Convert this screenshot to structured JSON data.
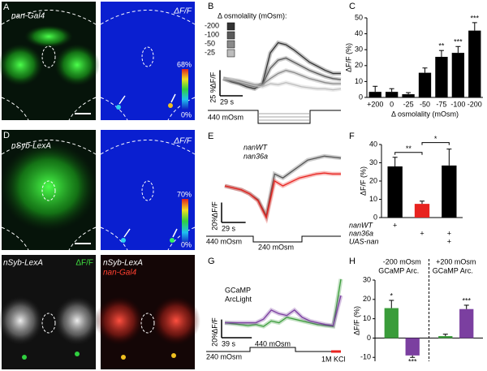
{
  "panel_a": {
    "letter": "A",
    "left_label": "nan-Gal4",
    "right_label": "ΔF/F",
    "colorbar_max": "68%",
    "colorbar_min": "0%"
  },
  "panel_d": {
    "letter": "D",
    "left_label": "nSyb-LexA",
    "right_label": "ΔF/F",
    "colorbar_max": "70%",
    "colorbar_min": "0%"
  },
  "panel_bottom": {
    "left_labels": [
      "nSyb-LexA",
      "ΔF/F"
    ],
    "right_labels": [
      "nSyb-LexA",
      "nan-Gal4"
    ]
  },
  "chart_data": [
    {
      "type": "line",
      "panel": "B",
      "legend_title": "Δ osmolality (mOsm):",
      "x": [
        0,
        10,
        20,
        30,
        40,
        50,
        60,
        70,
        80,
        90,
        100,
        110,
        120,
        130,
        140,
        150
      ],
      "xlim": [
        0,
        150
      ],
      "ylim": [
        -20,
        45
      ],
      "series": [
        {
          "name": "-200",
          "color": "#333333",
          "values": [
            0,
            -3,
            -5,
            -8,
            -10,
            -5,
            25,
            35,
            33,
            28,
            22,
            16,
            12,
            8,
            5,
            5
          ]
        },
        {
          "name": "-100",
          "color": "#5a5a5a",
          "values": [
            0,
            -2,
            -4,
            -6,
            -8,
            -6,
            10,
            18,
            20,
            16,
            12,
            8,
            5,
            2,
            0,
            -1
          ]
        },
        {
          "name": "-50",
          "color": "#8a8a8a",
          "values": [
            0,
            -1,
            -2,
            -4,
            -6,
            -6,
            0,
            5,
            8,
            6,
            3,
            0,
            -2,
            -4,
            -5,
            -5
          ]
        },
        {
          "name": "-25",
          "color": "#bdbdbd",
          "values": [
            0,
            -1,
            -3,
            -5,
            -7,
            -8,
            -5,
            -6,
            -4,
            -6,
            -8,
            -9,
            -10,
            -10,
            -11,
            -10
          ]
        }
      ],
      "y_scale_bar": {
        "value": 25,
        "label": "25 %"
      },
      "y_label": "ΔF/F",
      "x_scale_bar": {
        "value": 29,
        "label": "29 s"
      },
      "stimulus_labels": [
        "440 mOsm"
      ]
    },
    {
      "type": "bar",
      "panel": "C",
      "categories": [
        "+200",
        "0",
        "-25",
        "-50",
        "-75",
        "-100",
        "-200"
      ],
      "values": [
        3.5,
        3.5,
        2,
        15.5,
        25.5,
        28,
        42
      ],
      "errors": [
        3.5,
        2,
        1,
        3,
        4,
        4,
        5
      ],
      "annotations": [
        null,
        null,
        null,
        null,
        "**",
        "***",
        "***"
      ],
      "color": "#000000",
      "ylim": [
        0,
        50
      ],
      "yticks": [
        0,
        10,
        20,
        30,
        40,
        50
      ],
      "y_label": "ΔF/F (%)",
      "x_label": "Δ osmolality (mOsm)"
    },
    {
      "type": "line",
      "panel": "E",
      "x": [
        0,
        10,
        20,
        30,
        40,
        50,
        60,
        70,
        80,
        90,
        100,
        110,
        120,
        130,
        140
      ],
      "xlim": [
        0,
        140
      ],
      "ylim": [
        -40,
        40
      ],
      "series": [
        {
          "name": "nanWT",
          "color": "#555555",
          "values": [
            0,
            -2,
            -4,
            -8,
            -14,
            -30,
            12,
            8,
            14,
            20,
            26,
            28,
            30,
            29,
            28
          ]
        },
        {
          "name": "nan36a",
          "color": "#e8231f",
          "values": [
            0,
            -2,
            -4,
            -8,
            -15,
            -32,
            5,
            0,
            4,
            8,
            10,
            12,
            13,
            12,
            12
          ]
        }
      ],
      "y_scale_bar": {
        "value": 20,
        "label": "20%"
      },
      "y_label": "ΔF/F",
      "x_scale_bar": {
        "value": 29,
        "label": "29 s"
      },
      "stimulus_labels": [
        "440 mOsm",
        "240 mOsm"
      ]
    },
    {
      "type": "bar",
      "panel": "F",
      "values": [
        28,
        7.5,
        28.5
      ],
      "errors": [
        5,
        1.5,
        9
      ],
      "colors": [
        "#000000",
        "#e8231f",
        "#000000"
      ],
      "ylim": [
        0,
        40
      ],
      "yticks": [
        0,
        10,
        20,
        30,
        40
      ],
      "y_label": "ΔF/F (%)",
      "genotypes": [
        "nanWT",
        "nan36a",
        "UAS-nan"
      ],
      "genotype_table": [
        [
          "+",
          null,
          null
        ],
        [
          null,
          "+",
          "+"
        ],
        [
          null,
          null,
          "+"
        ]
      ],
      "comparisons": [
        "**",
        "*"
      ]
    },
    {
      "type": "line",
      "panel": "G",
      "x": [
        0,
        10,
        20,
        30,
        40,
        50,
        60,
        70,
        80,
        90,
        100,
        110,
        120,
        130,
        140,
        150
      ],
      "xlim": [
        0,
        150
      ],
      "ylim": [
        -20,
        55
      ],
      "series": [
        {
          "name": "GCaMP",
          "color": "#3a9c3a",
          "values": [
            0,
            -1,
            -2,
            -3,
            -2,
            -4,
            2,
            0,
            6,
            4,
            2,
            0,
            -2,
            -3,
            -4,
            48
          ]
        },
        {
          "name": "ArcLight",
          "color": "#7b3fa0",
          "values": [
            0,
            0,
            0,
            0,
            0,
            4,
            14,
            10,
            8,
            14,
            6,
            2,
            0,
            -2,
            -3,
            30
          ]
        }
      ],
      "y_scale_bar": {
        "value": 20,
        "label": "20%"
      },
      "y_label": "ΔF/F",
      "x_scale_bar": {
        "value": 39,
        "label": "39 s"
      },
      "stimulus_labels": [
        "240 mOsm",
        "440 mOsm",
        "1M KCl"
      ]
    },
    {
      "type": "bar",
      "panel": "H",
      "categories": [
        "-200 mOsm",
        "+200 mOsm"
      ],
      "series": [
        {
          "name": "GCaMP",
          "color": "#3a9c3a",
          "values": [
            15.5,
            1
          ],
          "errors": [
            4,
            1
          ],
          "annotations": [
            "*",
            null
          ]
        },
        {
          "name": "Arc.",
          "color": "#7b3fa0",
          "values": [
            -9,
            15
          ],
          "errors": [
            1,
            2
          ],
          "annotations": [
            "***",
            "***"
          ]
        }
      ],
      "ylim": [
        -12,
        30
      ],
      "yticks": [
        -10,
        0,
        10,
        20,
        30
      ],
      "y_label": "ΔF/F (%)"
    }
  ]
}
